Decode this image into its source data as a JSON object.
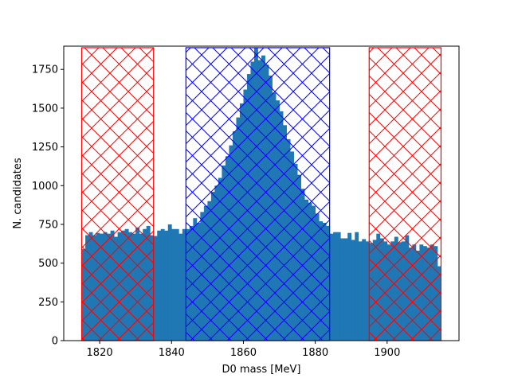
{
  "chart_data": {
    "type": "bar",
    "title": "",
    "xlabel": "D0 mass [MeV]",
    "ylabel": "N. candidates",
    "xlim": [
      1810,
      1920
    ],
    "ylim": [
      0,
      1900
    ],
    "grid": false,
    "xticks": [
      1820,
      1840,
      1860,
      1880,
      1900
    ],
    "yticks": [
      0,
      250,
      500,
      750,
      1000,
      1250,
      1500,
      1750
    ],
    "histogram": {
      "bin_start": 1815,
      "bin_width": 1,
      "color": "#1f77b4",
      "values": [
        590,
        680,
        700,
        680,
        695,
        690,
        700,
        690,
        710,
        670,
        700,
        710,
        720,
        700,
        690,
        730,
        690,
        720,
        740,
        680,
        675,
        710,
        720,
        710,
        750,
        720,
        720,
        690,
        720,
        720,
        740,
        790,
        760,
        830,
        870,
        900,
        960,
        1000,
        1050,
        1130,
        1190,
        1260,
        1350,
        1440,
        1530,
        1620,
        1720,
        1800,
        1890,
        1810,
        1840,
        1780,
        1710,
        1600,
        1550,
        1480,
        1390,
        1300,
        1220,
        1140,
        1070,
        980,
        910,
        890,
        870,
        820,
        770,
        760,
        740,
        690,
        700,
        700,
        660,
        660,
        695,
        650,
        700,
        640,
        655,
        640,
        630,
        650,
        690,
        660,
        640,
        620,
        640,
        670,
        635,
        640,
        680,
        600,
        620,
        580,
        620,
        610,
        600,
        620,
        610,
        480
      ]
    },
    "regions": [
      {
        "x0": 1815,
        "x1": 1835,
        "ymax": 1890,
        "color": "#ff0000"
      },
      {
        "x0": 1844,
        "x1": 1884,
        "ymax": 1890,
        "color": "#0000ff"
      },
      {
        "x0": 1895,
        "x1": 1915,
        "ymax": 1890,
        "color": "#ff0000"
      }
    ]
  }
}
